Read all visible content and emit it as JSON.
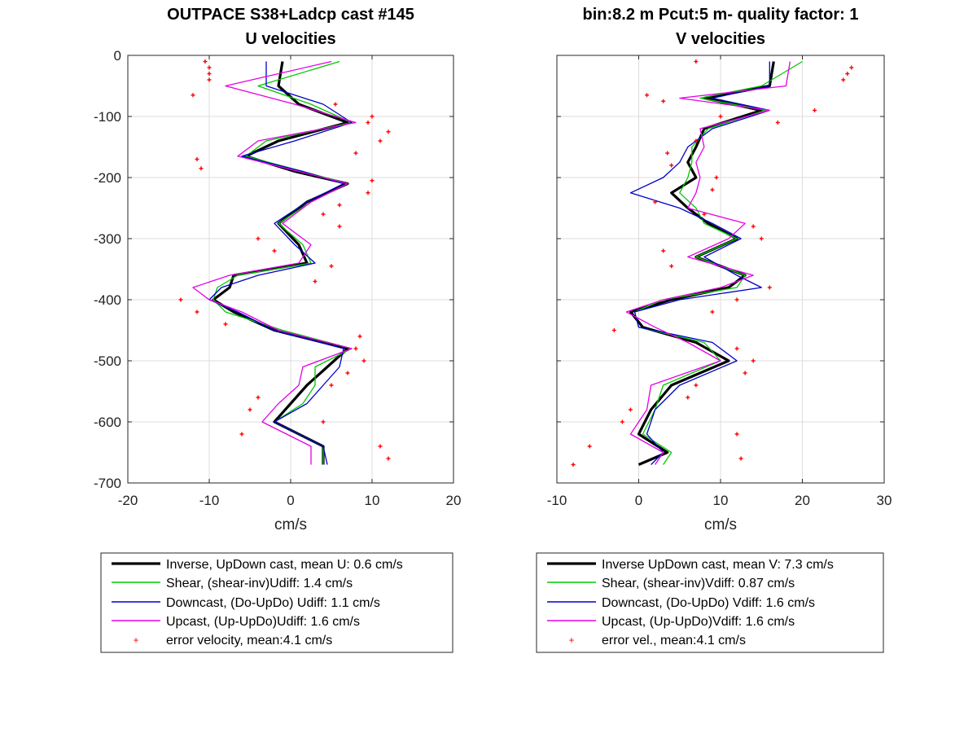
{
  "chart_data": [
    {
      "type": "line",
      "title": [
        "OUTPACE S38+Ladcp cast #145",
        "U velocities"
      ],
      "xlabel": "cm/s",
      "ylabel": "",
      "xlim": [
        -20,
        20
      ],
      "ylim": [
        -700,
        0
      ],
      "xticks": [
        "-20",
        "-10",
        "0",
        "10",
        "20"
      ],
      "yticks": [
        "0",
        "-100",
        "-200",
        "-300",
        "-400",
        "-500",
        "-600",
        "-700"
      ],
      "grid": true,
      "legend_position": "below",
      "legend": [
        "Inverse, UpDown cast, mean U:  0.6 cm/s",
        "Shear, (shear-inv)Udiff:  1.4 cm/s",
        "Downcast, (Do-UpDo) Udiff:  1.1 cm/s",
        "Upcast, (Up-UpDo)Udiff:  1.6 cm/s",
        "error velocity, mean:4.1 cm/s"
      ],
      "depth": [
        -10,
        -50,
        -80,
        -110,
        -140,
        -165,
        -190,
        -210,
        -240,
        -275,
        -310,
        -340,
        -360,
        -380,
        -400,
        -420,
        -450,
        -480,
        -510,
        -540,
        -570,
        -600,
        -640,
        -670
      ],
      "series": [
        {
          "color": "#000000",
          "width": 3.2,
          "values": [
            -1.0,
            -1.5,
            1.0,
            7.0,
            -1.5,
            -5.5,
            0.5,
            7.0,
            2.0,
            -1.5,
            1.0,
            2.0,
            -7.0,
            -7.5,
            -9.5,
            -7.0,
            -2.0,
            7.0,
            4.5,
            2.0,
            0.0,
            -2.0,
            4.0,
            4.0
          ]
        },
        {
          "color": "#00c800",
          "width": 1.3,
          "values": [
            6.0,
            -4.0,
            2.5,
            7.5,
            -3.0,
            -5.5,
            1.5,
            7.0,
            2.5,
            -1.5,
            1.5,
            2.5,
            -6.5,
            -9.0,
            -9.5,
            -8.0,
            -1.0,
            7.5,
            3.0,
            3.0,
            1.5,
            -2.0,
            4.0,
            4.0
          ]
        },
        {
          "color": "#0000c8",
          "width": 1.3,
          "values": [
            -3.0,
            -3.0,
            4.0,
            7.5,
            0.5,
            -6.0,
            1.5,
            6.5,
            2.0,
            -2.0,
            0.5,
            3.0,
            -4.0,
            -8.5,
            -10.0,
            -6.5,
            -2.0,
            6.5,
            6.0,
            4.0,
            2.0,
            -2.0,
            4.0,
            4.5
          ]
        },
        {
          "color": "#e600e6",
          "width": 1.3,
          "values": [
            5.0,
            -8.0,
            0.5,
            8.0,
            -4.0,
            -6.5,
            1.0,
            7.0,
            2.5,
            -1.0,
            2.5,
            1.0,
            -7.5,
            -12.0,
            -10.0,
            -6.0,
            -1.5,
            7.5,
            1.5,
            1.0,
            -1.5,
            -3.5,
            2.5,
            2.5
          ]
        }
      ],
      "error_points": {
        "color": "#ff0000",
        "depth": [
          -10,
          -20,
          -30,
          -40,
          -65,
          -80,
          -100,
          -110,
          -125,
          -140,
          -160,
          -170,
          -185,
          -205,
          -225,
          -245,
          -260,
          -280,
          -300,
          -320,
          -345,
          -370,
          -400,
          -420,
          -440,
          -460,
          -480,
          -500,
          -520,
          -540,
          -560,
          -580,
          -600,
          -620,
          -640,
          -660
        ],
        "values": [
          -10.5,
          -10.0,
          -10.0,
          -10.0,
          -12.0,
          5.5,
          10.0,
          9.5,
          12.0,
          11.0,
          8.0,
          -11.5,
          -11.0,
          10.0,
          9.5,
          6.0,
          4.0,
          6.0,
          -4.0,
          -2.0,
          5.0,
          3.0,
          -13.5,
          -11.5,
          -8.0,
          8.5,
          8.0,
          9.0,
          7.0,
          5.0,
          -4.0,
          -5.0,
          4.0,
          -6.0,
          11.0,
          12.0
        ]
      }
    },
    {
      "type": "line",
      "title": [
        "bin:8.2 m  Pcut:5 m- quality factor:  1",
        "V velocities"
      ],
      "xlabel": "cm/s",
      "ylabel": "",
      "xlim": [
        -10,
        30
      ],
      "ylim": [
        -700,
        0
      ],
      "xticks": [
        "-10",
        "0",
        "10",
        "20",
        "30"
      ],
      "grid": true,
      "legend_position": "below",
      "legend": [
        "Inverse UpDown cast, mean V:  7.3 cm/s",
        "Shear, (shear-inv)Vdiff:  0.87 cm/s",
        "Downcast, (Do-UpDo) Vdiff:  1.6 cm/s",
        "Upcast, (Up-UpDo)Vdiff:  1.6 cm/s",
        "error vel., mean:4.1 cm/s"
      ],
      "depth": [
        -10,
        -50,
        -70,
        -90,
        -120,
        -150,
        -175,
        -200,
        -225,
        -250,
        -275,
        -300,
        -330,
        -360,
        -380,
        -400,
        -420,
        -445,
        -470,
        -500,
        -540,
        -580,
        -620,
        -650,
        -670
      ],
      "series": [
        {
          "color": "#000000",
          "width": 3.2,
          "values": [
            16.5,
            16.0,
            8.0,
            15.0,
            8.0,
            7.0,
            6.0,
            7.0,
            4.0,
            6.0,
            8.5,
            12.0,
            7.0,
            13.0,
            11.0,
            4.0,
            -1.0,
            0.5,
            7.0,
            11.0,
            4.0,
            1.5,
            0.0,
            3.5,
            0.0
          ]
        },
        {
          "color": "#00c800",
          "width": 1.3,
          "values": [
            20.0,
            15.0,
            7.5,
            15.5,
            8.5,
            6.5,
            6.5,
            6.0,
            5.0,
            7.0,
            8.0,
            12.0,
            7.0,
            13.0,
            12.0,
            3.0,
            -0.5,
            0.0,
            8.0,
            10.0,
            3.0,
            2.0,
            0.5,
            4.0,
            3.0
          ]
        },
        {
          "color": "#0000c8",
          "width": 1.3,
          "values": [
            16.0,
            16.0,
            9.0,
            16.0,
            9.0,
            6.0,
            5.0,
            3.0,
            -1.0,
            5.0,
            9.0,
            12.5,
            8.0,
            12.0,
            15.0,
            5.0,
            -0.5,
            0.0,
            9.0,
            12.0,
            5.0,
            2.0,
            1.0,
            3.0,
            1.5
          ]
        },
        {
          "color": "#e600e6",
          "width": 1.3,
          "values": [
            18.5,
            18.0,
            5.0,
            16.0,
            7.5,
            8.0,
            7.0,
            7.5,
            7.0,
            6.0,
            13.0,
            11.0,
            6.0,
            14.0,
            10.0,
            3.0,
            -1.5,
            2.0,
            6.0,
            10.0,
            1.5,
            1.0,
            -1.0,
            3.0,
            2.0
          ]
        }
      ],
      "error_points": {
        "color": "#ff0000",
        "depth": [
          -10,
          -20,
          -30,
          -40,
          -65,
          -75,
          -90,
          -100,
          -110,
          -140,
          -160,
          -180,
          -200,
          -220,
          -240,
          -260,
          -280,
          -300,
          -320,
          -345,
          -380,
          -400,
          -420,
          -450,
          -480,
          -500,
          -520,
          -540,
          -560,
          -580,
          -600,
          -620,
          -640,
          -660,
          -670
        ],
        "values": [
          7.0,
          26.0,
          25.5,
          25.0,
          1.0,
          3.0,
          21.5,
          10.0,
          17.0,
          7.0,
          3.5,
          4.0,
          9.5,
          9.0,
          2.0,
          8.0,
          14.0,
          15.0,
          3.0,
          4.0,
          16.0,
          12.0,
          9.0,
          -3.0,
          12.0,
          14.0,
          13.0,
          7.0,
          6.0,
          -1.0,
          -2.0,
          12.0,
          -6.0,
          12.5,
          -8.0
        ]
      }
    }
  ]
}
